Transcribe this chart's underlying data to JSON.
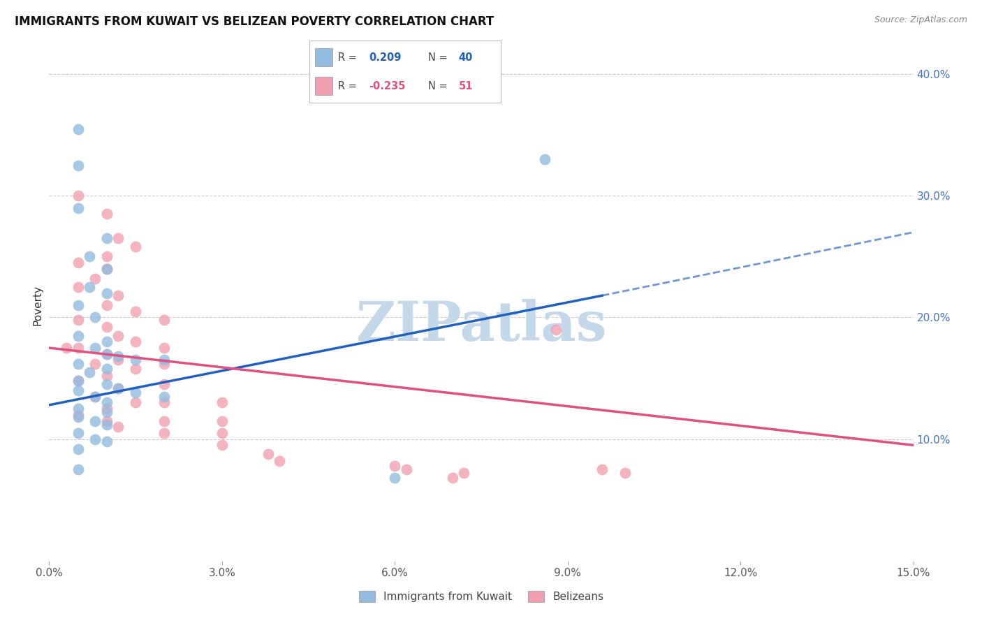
{
  "title": "IMMIGRANTS FROM KUWAIT VS BELIZEAN POVERTY CORRELATION CHART",
  "source": "Source: ZipAtlas.com",
  "xlabel_blue": "Immigrants from Kuwait",
  "xlabel_pink": "Belizeans",
  "ylabel": "Poverty",
  "xlim": [
    0.0,
    0.15
  ],
  "ylim": [
    0.0,
    0.42
  ],
  "xticks": [
    0.0,
    0.03,
    0.06,
    0.09,
    0.12,
    0.15
  ],
  "yticks": [
    0.1,
    0.2,
    0.3,
    0.4
  ],
  "ytick_labels": [
    "10.0%",
    "20.0%",
    "30.0%",
    "40.0%"
  ],
  "xtick_labels": [
    "0.0%",
    "3.0%",
    "6.0%",
    "9.0%",
    "12.0%",
    "15.0%"
  ],
  "r_blue": 0.209,
  "n_blue": 40,
  "r_pink": -0.235,
  "n_pink": 51,
  "blue_color": "#92bce0",
  "pink_color": "#f0a0b0",
  "blue_line_color": "#2060c0",
  "pink_line_color": "#e05080",
  "blue_scatter": [
    [
      0.005,
      0.355
    ],
    [
      0.005,
      0.325
    ],
    [
      0.005,
      0.29
    ],
    [
      0.01,
      0.265
    ],
    [
      0.007,
      0.25
    ],
    [
      0.01,
      0.24
    ],
    [
      0.007,
      0.225
    ],
    [
      0.01,
      0.22
    ],
    [
      0.005,
      0.21
    ],
    [
      0.008,
      0.2
    ],
    [
      0.005,
      0.185
    ],
    [
      0.01,
      0.18
    ],
    [
      0.008,
      0.175
    ],
    [
      0.01,
      0.17
    ],
    [
      0.012,
      0.168
    ],
    [
      0.015,
      0.165
    ],
    [
      0.005,
      0.162
    ],
    [
      0.01,
      0.158
    ],
    [
      0.007,
      0.155
    ],
    [
      0.005,
      0.148
    ],
    [
      0.01,
      0.145
    ],
    [
      0.012,
      0.142
    ],
    [
      0.005,
      0.14
    ],
    [
      0.015,
      0.138
    ],
    [
      0.008,
      0.135
    ],
    [
      0.01,
      0.13
    ],
    [
      0.005,
      0.125
    ],
    [
      0.01,
      0.122
    ],
    [
      0.005,
      0.118
    ],
    [
      0.008,
      0.115
    ],
    [
      0.01,
      0.112
    ],
    [
      0.005,
      0.105
    ],
    [
      0.008,
      0.1
    ],
    [
      0.01,
      0.098
    ],
    [
      0.005,
      0.092
    ],
    [
      0.005,
      0.075
    ],
    [
      0.02,
      0.165
    ],
    [
      0.02,
      0.135
    ],
    [
      0.086,
      0.33
    ],
    [
      0.06,
      0.068
    ]
  ],
  "pink_scatter": [
    [
      0.005,
      0.3
    ],
    [
      0.01,
      0.285
    ],
    [
      0.012,
      0.265
    ],
    [
      0.015,
      0.258
    ],
    [
      0.01,
      0.25
    ],
    [
      0.005,
      0.245
    ],
    [
      0.01,
      0.24
    ],
    [
      0.008,
      0.232
    ],
    [
      0.005,
      0.225
    ],
    [
      0.012,
      0.218
    ],
    [
      0.01,
      0.21
    ],
    [
      0.015,
      0.205
    ],
    [
      0.005,
      0.198
    ],
    [
      0.01,
      0.192
    ],
    [
      0.012,
      0.185
    ],
    [
      0.015,
      0.18
    ],
    [
      0.005,
      0.175
    ],
    [
      0.01,
      0.17
    ],
    [
      0.012,
      0.165
    ],
    [
      0.008,
      0.162
    ],
    [
      0.015,
      0.158
    ],
    [
      0.01,
      0.152
    ],
    [
      0.005,
      0.148
    ],
    [
      0.012,
      0.142
    ],
    [
      0.008,
      0.135
    ],
    [
      0.015,
      0.13
    ],
    [
      0.01,
      0.125
    ],
    [
      0.005,
      0.12
    ],
    [
      0.01,
      0.115
    ],
    [
      0.012,
      0.11
    ],
    [
      0.02,
      0.198
    ],
    [
      0.02,
      0.175
    ],
    [
      0.02,
      0.162
    ],
    [
      0.02,
      0.145
    ],
    [
      0.02,
      0.13
    ],
    [
      0.02,
      0.115
    ],
    [
      0.02,
      0.105
    ],
    [
      0.03,
      0.13
    ],
    [
      0.03,
      0.115
    ],
    [
      0.03,
      0.105
    ],
    [
      0.03,
      0.095
    ],
    [
      0.038,
      0.088
    ],
    [
      0.04,
      0.082
    ],
    [
      0.06,
      0.078
    ],
    [
      0.062,
      0.075
    ],
    [
      0.072,
      0.072
    ],
    [
      0.07,
      0.068
    ],
    [
      0.088,
      0.19
    ],
    [
      0.096,
      0.075
    ],
    [
      0.1,
      0.072
    ],
    [
      0.003,
      0.175
    ]
  ],
  "blue_line": [
    [
      0.0,
      0.128
    ],
    [
      0.096,
      0.218
    ]
  ],
  "blue_line_dashed": [
    [
      0.096,
      0.218
    ],
    [
      0.15,
      0.27
    ]
  ],
  "pink_line": [
    [
      0.0,
      0.175
    ],
    [
      0.15,
      0.095
    ]
  ],
  "background_color": "#ffffff",
  "grid_color": "#cccccc",
  "watermark": "ZIPatlas",
  "watermark_color": "#c5d8ea"
}
